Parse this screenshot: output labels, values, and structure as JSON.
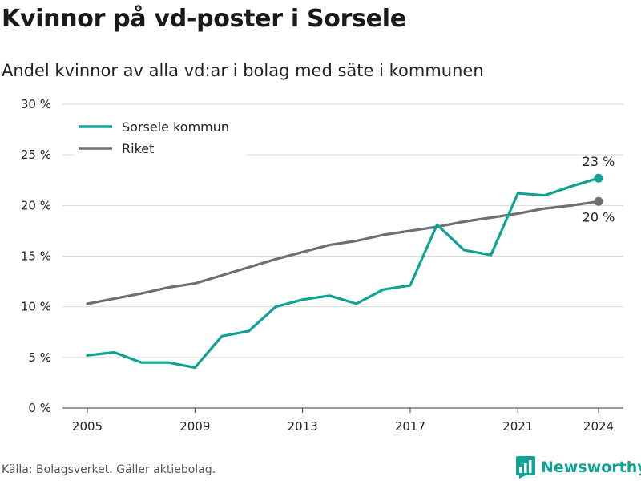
{
  "title": "Kvinnor på vd-poster i Sorsele",
  "subtitle": "Andel kvinnor av alla vd:ar i bolag med säte i kommunen",
  "source": "Källa: Bolagsverket. Gäller aktiebolag.",
  "brand": {
    "name": "Newsworthy",
    "icon": "bar-chart-logo-icon"
  },
  "colors": {
    "sorsele": "#10a393",
    "riket": "#6e6e73",
    "grid": "#d9d9d9",
    "brand": "#10a393"
  },
  "chart_data": {
    "type": "line",
    "x": [
      2005,
      2006,
      2007,
      2008,
      2009,
      2010,
      2011,
      2012,
      2013,
      2014,
      2015,
      2016,
      2017,
      2018,
      2019,
      2020,
      2021,
      2022,
      2023,
      2024
    ],
    "xticks": [
      2005,
      2009,
      2013,
      2017,
      2021,
      2024
    ],
    "yticks": [
      0,
      5,
      10,
      15,
      20,
      25,
      30
    ],
    "ytick_labels": [
      "0 %",
      "5 %",
      "10 %",
      "15 %",
      "20 %",
      "25 %",
      "30 %"
    ],
    "ylim": [
      0,
      30
    ],
    "grid": "horizontal",
    "legend_position": "top-left",
    "series": [
      {
        "name": "Sorsele kommun",
        "color": "#10a393",
        "values": [
          5.2,
          5.5,
          4.5,
          4.5,
          4.0,
          7.1,
          7.6,
          10.0,
          10.7,
          11.1,
          10.3,
          11.7,
          12.1,
          18.1,
          15.6,
          15.1,
          21.2,
          21.0,
          21.9,
          22.7
        ],
        "end_label": "23 %"
      },
      {
        "name": "Riket",
        "color": "#6e6e73",
        "values": [
          10.3,
          10.8,
          11.3,
          11.9,
          12.3,
          13.1,
          13.9,
          14.7,
          15.4,
          16.1,
          16.5,
          17.1,
          17.5,
          17.9,
          18.4,
          18.8,
          19.2,
          19.7,
          20.0,
          20.4
        ],
        "end_label": "20 %"
      }
    ]
  }
}
